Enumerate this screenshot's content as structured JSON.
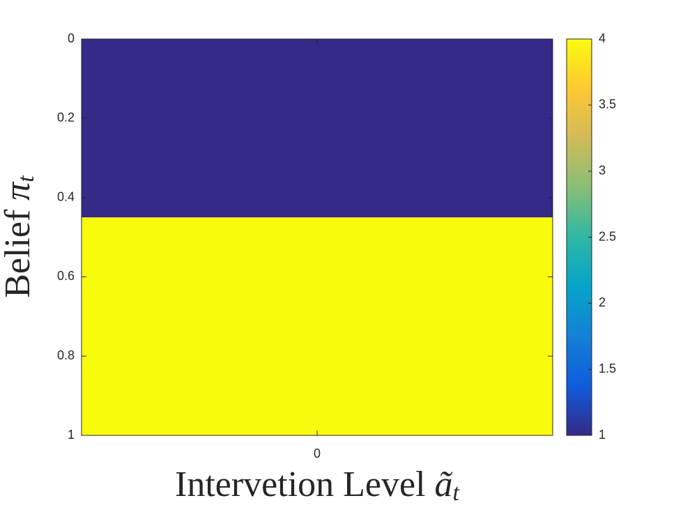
{
  "chart_data": {
    "type": "heatmap",
    "xlabel": {
      "text": "Intervetion Level ",
      "symbol": "ã",
      "subscript": "t"
    },
    "ylabel": {
      "text": "Belief ",
      "symbol": "π",
      "subscript": "t"
    },
    "xlim": [
      -0.5,
      0.5
    ],
    "xticks": [
      0
    ],
    "ylim": [
      0,
      1
    ],
    "yticks": [
      0,
      0.2,
      0.4,
      0.6,
      0.8,
      1
    ],
    "ydir": "reverse",
    "y_edges": [
      0,
      0.45,
      1
    ],
    "values": [
      1,
      4
    ],
    "clim": [
      1,
      4
    ],
    "cticks": [
      1,
      1.5,
      2,
      2.5,
      3,
      3.5,
      4
    ],
    "colormap": [
      "#352a87",
      "#0f5cdd",
      "#1481d6",
      "#06a4ca",
      "#2eb7a4",
      "#87bf77",
      "#d1bb59",
      "#fec832",
      "#f9fb0e"
    ]
  }
}
